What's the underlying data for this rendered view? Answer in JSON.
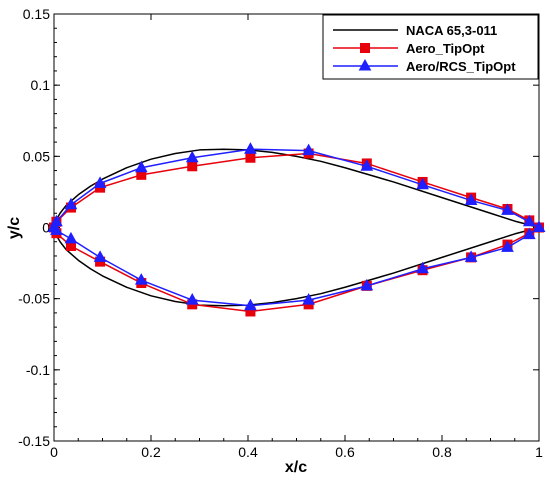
{
  "chart_data": {
    "type": "line",
    "title": "",
    "xlabel": "x/c",
    "ylabel": "y/c",
    "xlim": [
      0,
      1
    ],
    "ylim": [
      -0.15,
      0.15
    ],
    "xticks": [
      "0",
      "0.2",
      "0.4",
      "0.6",
      "0.8",
      "1"
    ],
    "yticks": [
      "-0.15",
      "-0.1",
      "-0.05",
      "0",
      "0.05",
      "0.1",
      "0.15"
    ],
    "grid": false,
    "legend_position": "top-right",
    "series": [
      {
        "name": "NACA 65,3-011",
        "color": "#000000",
        "marker": "none",
        "x": [
          1.0,
          0.95,
          0.9,
          0.8,
          0.7,
          0.6,
          0.55,
          0.5,
          0.45,
          0.4,
          0.35,
          0.3,
          0.25,
          0.2,
          0.15,
          0.1,
          0.075,
          0.05,
          0.025,
          0.0125,
          0.005,
          0.0,
          0.005,
          0.0125,
          0.025,
          0.05,
          0.075,
          0.1,
          0.15,
          0.2,
          0.25,
          0.3,
          0.35,
          0.4,
          0.45,
          0.5,
          0.55,
          0.6,
          0.7,
          0.8,
          0.9,
          0.95,
          1.0
        ],
        "y": [
          0.0,
          0.0045,
          0.01,
          0.021,
          0.032,
          0.042,
          0.0465,
          0.05,
          0.0528,
          0.0545,
          0.055,
          0.0545,
          0.052,
          0.048,
          0.042,
          0.034,
          0.029,
          0.023,
          0.0155,
          0.01,
          0.0055,
          0.0,
          -0.0055,
          -0.01,
          -0.0155,
          -0.023,
          -0.029,
          -0.034,
          -0.042,
          -0.048,
          -0.052,
          -0.0545,
          -0.055,
          -0.0545,
          -0.0528,
          -0.05,
          -0.0465,
          -0.042,
          -0.032,
          -0.021,
          -0.01,
          -0.0045,
          0.0
        ]
      },
      {
        "name": "Aero_TipOpt",
        "color": "#e8000b",
        "marker": "square",
        "x": [
          1.0,
          0.98,
          0.935,
          0.86,
          0.76,
          0.645,
          0.525,
          0.405,
          0.285,
          0.18,
          0.095,
          0.035,
          0.005,
          0.0,
          0.005,
          0.035,
          0.095,
          0.18,
          0.285,
          0.405,
          0.525,
          0.645,
          0.76,
          0.86,
          0.935,
          0.98,
          1.0
        ],
        "y": [
          0.0,
          0.005,
          0.013,
          0.021,
          0.032,
          0.045,
          0.052,
          0.049,
          0.043,
          0.037,
          0.028,
          0.014,
          0.004,
          0.0,
          -0.004,
          -0.013,
          -0.024,
          -0.039,
          -0.054,
          -0.059,
          -0.054,
          -0.041,
          -0.03,
          -0.021,
          -0.012,
          -0.004,
          0.0
        ]
      },
      {
        "name": "Aero/RCS_TipOpt",
        "color": "#1f1fff",
        "marker": "triangle",
        "x": [
          1.0,
          0.98,
          0.935,
          0.86,
          0.76,
          0.645,
          0.525,
          0.405,
          0.285,
          0.18,
          0.095,
          0.035,
          0.005,
          0.0,
          0.005,
          0.035,
          0.095,
          0.18,
          0.285,
          0.405,
          0.525,
          0.645,
          0.76,
          0.86,
          0.935,
          0.98,
          1.0
        ],
        "y": [
          0.0,
          0.004,
          0.012,
          0.019,
          0.03,
          0.043,
          0.054,
          0.055,
          0.049,
          0.042,
          0.031,
          0.016,
          0.004,
          0.0,
          -0.002,
          -0.008,
          -0.021,
          -0.037,
          -0.051,
          -0.055,
          -0.051,
          -0.041,
          -0.029,
          -0.021,
          -0.014,
          -0.005,
          0.0
        ]
      }
    ]
  }
}
